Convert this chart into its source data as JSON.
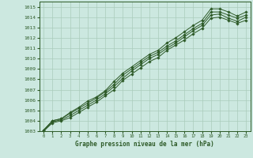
{
  "title": "Graphe pression niveau de la mer (hPa)",
  "bg_color": "#cce8e0",
  "grid_color": "#aaccbb",
  "line_color": "#2d5a27",
  "marker_color": "#2d5a27",
  "xlim": [
    -0.5,
    23.5
  ],
  "ylim": [
    1003,
    1015.5
  ],
  "xticks": [
    0,
    1,
    2,
    3,
    4,
    5,
    6,
    7,
    8,
    9,
    10,
    11,
    12,
    13,
    14,
    15,
    16,
    17,
    18,
    19,
    20,
    21,
    22,
    23
  ],
  "yticks": [
    1003,
    1004,
    1005,
    1006,
    1007,
    1008,
    1009,
    1010,
    1011,
    1012,
    1013,
    1014,
    1015
  ],
  "series": [
    [
      1003.1,
      1004.0,
      1004.2,
      1004.8,
      1005.3,
      1005.9,
      1006.3,
      1006.9,
      1007.8,
      1008.6,
      1009.2,
      1009.8,
      1010.4,
      1010.8,
      1011.5,
      1012.0,
      1012.6,
      1013.2,
      1013.7,
      1014.8,
      1014.8,
      1014.5,
      1014.1,
      1014.5
    ],
    [
      1003.1,
      1004.0,
      1004.2,
      1004.7,
      1005.2,
      1005.7,
      1006.2,
      1006.8,
      1007.5,
      1008.4,
      1009.0,
      1009.6,
      1010.2,
      1010.6,
      1011.2,
      1011.7,
      1012.3,
      1012.9,
      1013.4,
      1014.5,
      1014.5,
      1014.2,
      1013.9,
      1014.2
    ],
    [
      1003.0,
      1003.9,
      1004.1,
      1004.5,
      1005.0,
      1005.5,
      1006.0,
      1006.6,
      1007.3,
      1008.1,
      1008.8,
      1009.4,
      1010.0,
      1010.4,
      1011.0,
      1011.5,
      1012.1,
      1012.7,
      1013.2,
      1014.2,
      1014.3,
      1013.9,
      1013.6,
      1014.0
    ],
    [
      1003.0,
      1003.8,
      1004.0,
      1004.3,
      1004.8,
      1005.3,
      1005.8,
      1006.4,
      1007.0,
      1007.9,
      1008.5,
      1009.1,
      1009.7,
      1010.1,
      1010.8,
      1011.3,
      1011.8,
      1012.4,
      1012.9,
      1013.9,
      1014.0,
      1013.7,
      1013.4,
      1013.7
    ]
  ]
}
